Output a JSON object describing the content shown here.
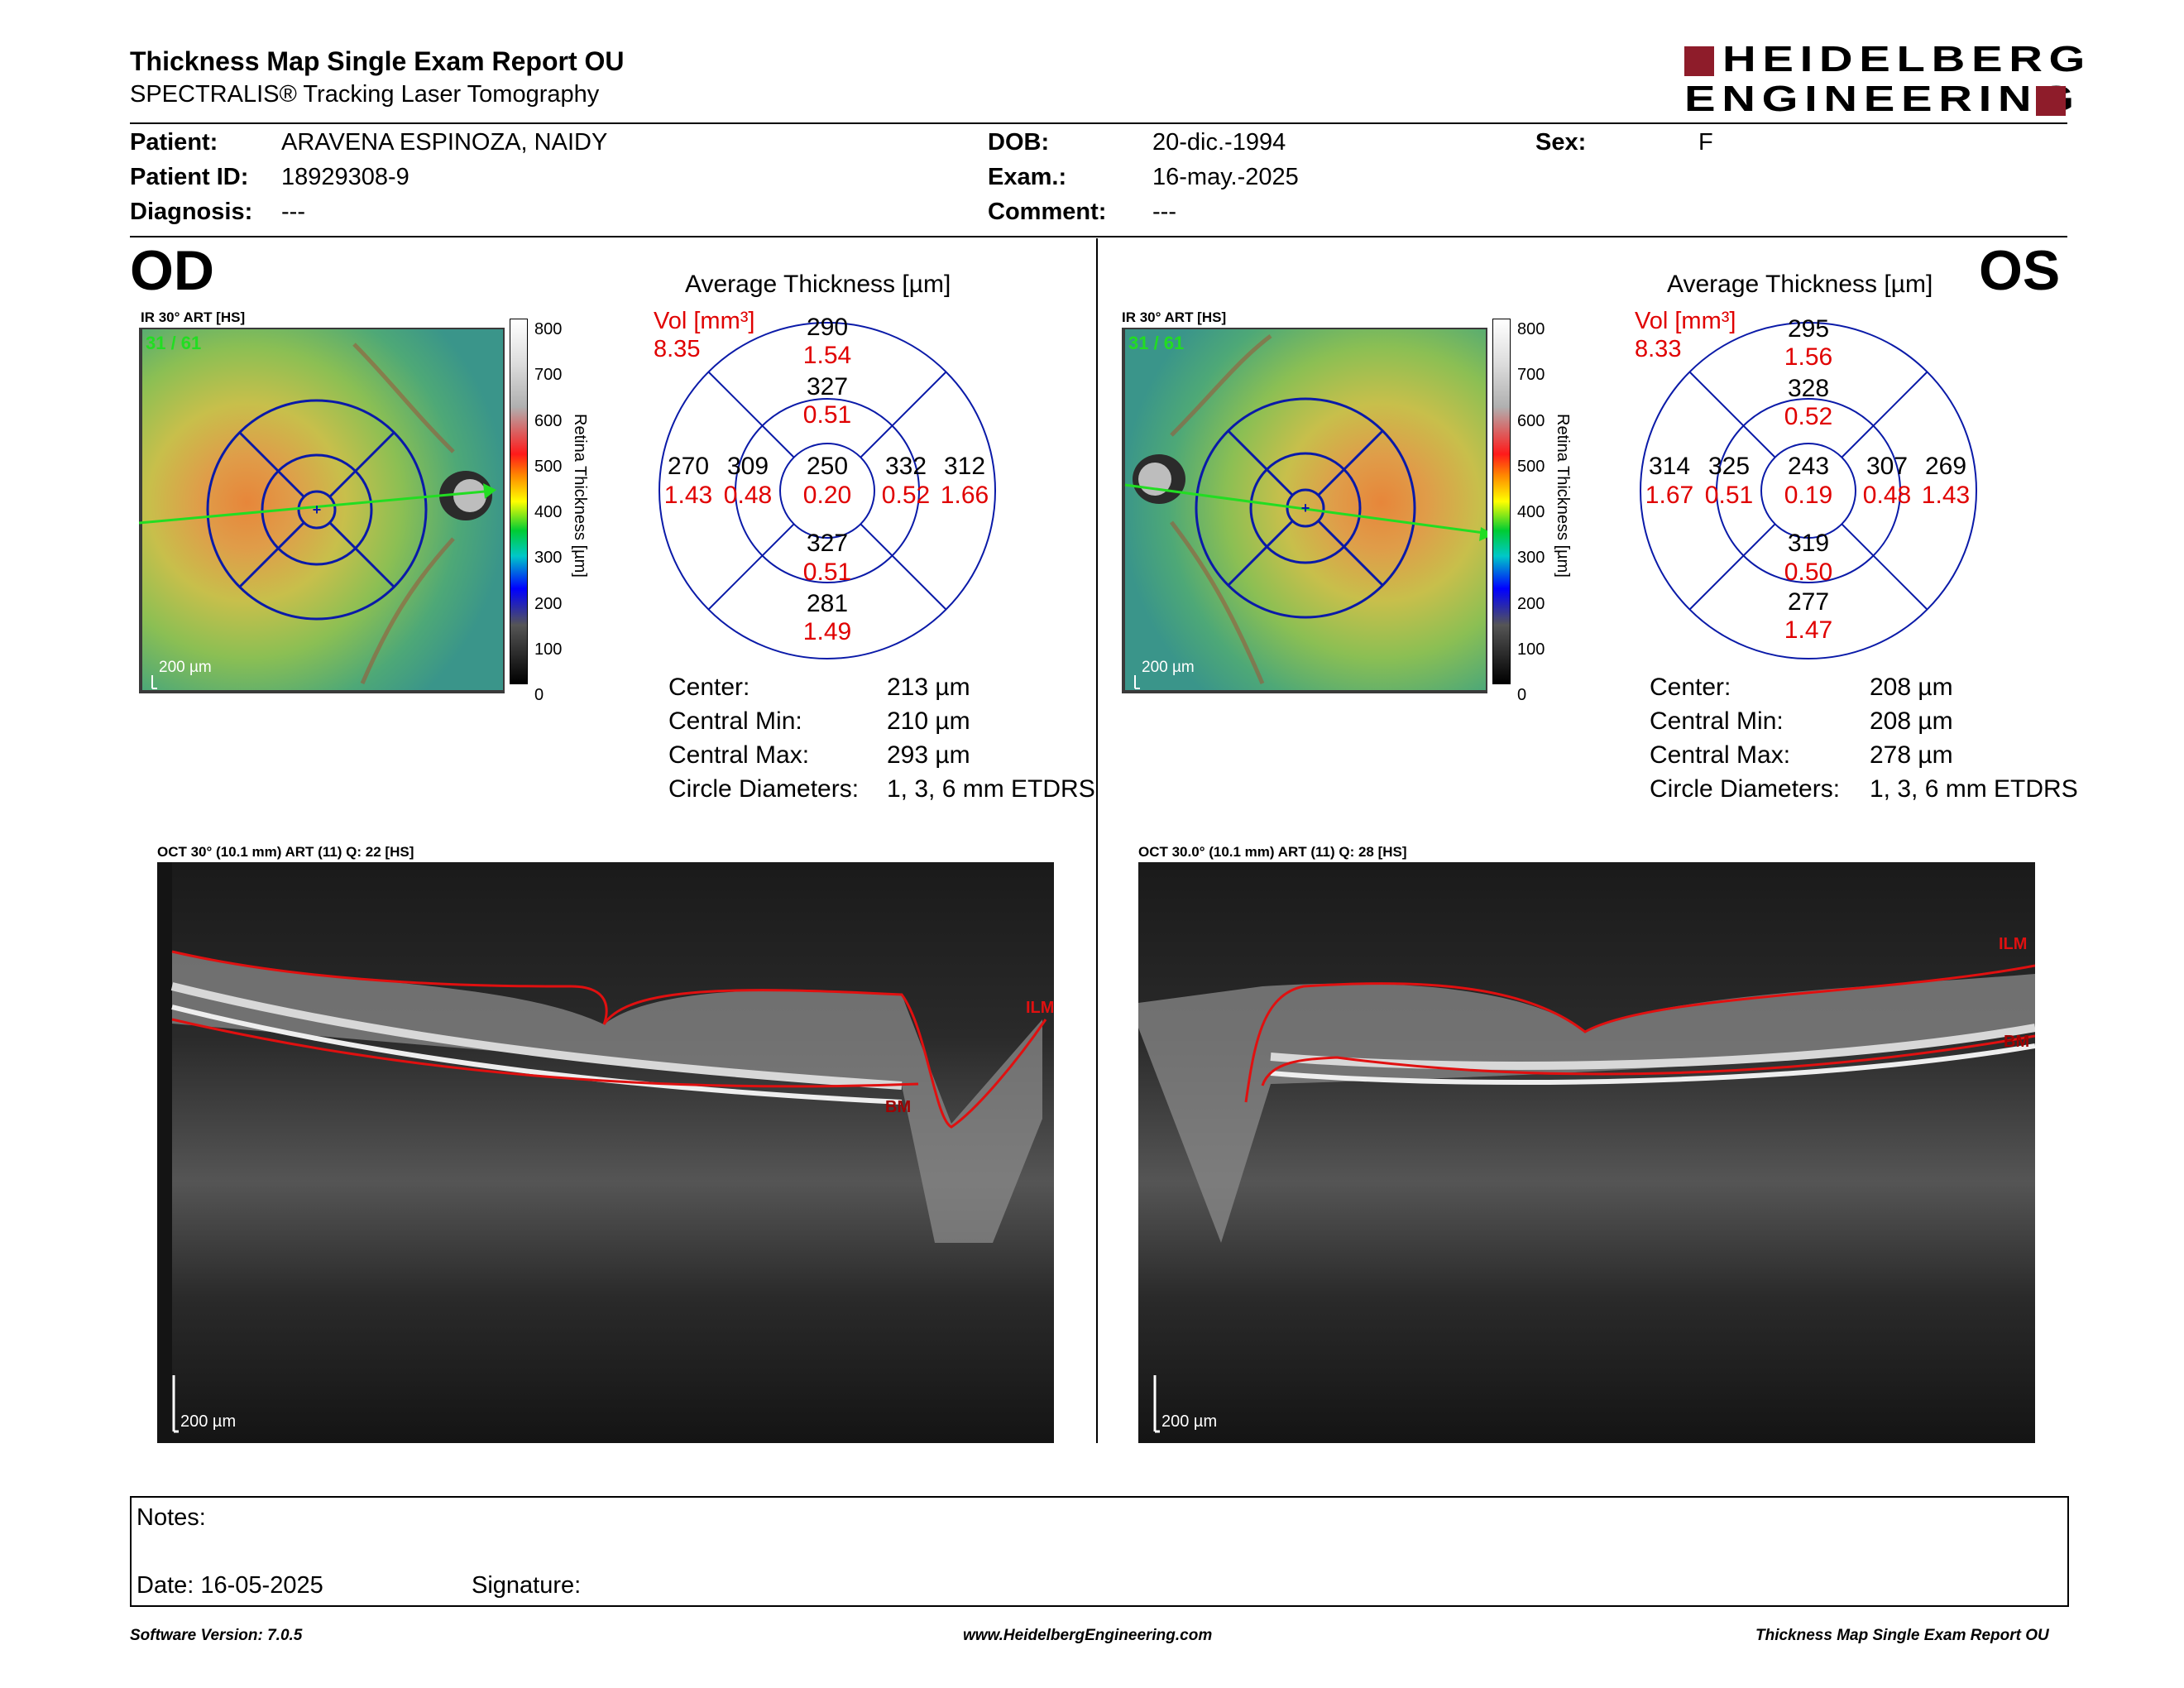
{
  "header": {
    "title": "Thickness Map Single Exam Report OU",
    "subtitle": "SPECTRALIS® Tracking Laser Tomography",
    "logo_line1": "HEIDELBERG",
    "logo_line2": "ENGINEERING"
  },
  "patient": {
    "patient_label": "Patient:",
    "patient_value": "ARAVENA ESPINOZA, NAIDY",
    "id_label": "Patient ID:",
    "id_value": "18929308-9",
    "diagnosis_label": "Diagnosis:",
    "diagnosis_value": "---",
    "dob_label": "DOB:",
    "dob_value": "20-dic.-1994",
    "exam_label": "Exam.:",
    "exam_value": "16-may.-2025",
    "comment_label": "Comment:",
    "comment_value": "---",
    "sex_label": "Sex:",
    "sex_value": "F"
  },
  "od": {
    "eye": "OD",
    "ir_label": "IR 30° ART [HS]",
    "frame": "31 / 61",
    "scale": "200 µm",
    "grid_title": "Average Thickness [µm]",
    "vol_label": "Vol [mm³]",
    "vol_total": "8.35",
    "sectors": {
      "outer_sup": {
        "t": "290",
        "v": "1.54"
      },
      "inner_sup": {
        "t": "327",
        "v": "0.51"
      },
      "outer_temp": {
        "t": "270",
        "v": "1.43"
      },
      "inner_temp": {
        "t": "309",
        "v": "0.48"
      },
      "center": {
        "t": "250",
        "v": "0.20"
      },
      "inner_nasal": {
        "t": "332",
        "v": "0.52"
      },
      "outer_nasal": {
        "t": "312",
        "v": "1.66"
      },
      "inner_inf": {
        "t": "327",
        "v": "0.51"
      },
      "outer_inf": {
        "t": "281",
        "v": "1.49"
      }
    },
    "stats": [
      {
        "label": "Center:",
        "value": "213 µm"
      },
      {
        "label": "Central Min:",
        "value": "210 µm"
      },
      {
        "label": "Central Max:",
        "value": "293 µm"
      },
      {
        "label": "Circle Diameters:",
        "value": "1, 3, 6 mm ETDRS"
      }
    ],
    "oct_label": "OCT 30° (10.1 mm) ART (11) Q: 22 [HS]",
    "oct_scale": "200 µm",
    "ilm": "ILM",
    "bm": "BM"
  },
  "os": {
    "eye": "OS",
    "ir_label": "IR 30° ART [HS]",
    "frame": "31 / 61",
    "scale": "200 µm",
    "grid_title": "Average Thickness [µm]",
    "vol_label": "Vol [mm³]",
    "vol_total": "8.33",
    "sectors": {
      "outer_sup": {
        "t": "295",
        "v": "1.56"
      },
      "inner_sup": {
        "t": "328",
        "v": "0.52"
      },
      "outer_temp": {
        "t": "269",
        "v": "1.43"
      },
      "inner_temp": {
        "t": "307",
        "v": "0.48"
      },
      "center": {
        "t": "243",
        "v": "0.19"
      },
      "inner_nasal": {
        "t": "325",
        "v": "0.51"
      },
      "outer_nasal": {
        "t": "314",
        "v": "1.67"
      },
      "inner_inf": {
        "t": "319",
        "v": "0.50"
      },
      "outer_inf": {
        "t": "277",
        "v": "1.47"
      }
    },
    "stats": [
      {
        "label": "Center:",
        "value": "208 µm"
      },
      {
        "label": "Central Min:",
        "value": "208 µm"
      },
      {
        "label": "Central Max:",
        "value": "278 µm"
      },
      {
        "label": "Circle Diameters:",
        "value": "1, 3, 6 mm ETDRS"
      }
    ],
    "oct_label": "OCT 30.0° (10.1 mm) ART (11) Q: 28 [HS]",
    "oct_scale": "200 µm",
    "ilm": "ILM",
    "bm": "BM"
  },
  "colorbar": {
    "ticks": [
      "800",
      "700",
      "600",
      "500",
      "400",
      "300",
      "200",
      "100",
      "0"
    ],
    "title": "Retina Thickness [µm]"
  },
  "notes": {
    "notes_label": "Notes:",
    "date_label": "Date: 16-05-2025",
    "signature_label": "Signature:"
  },
  "footer": {
    "software": "Software Version: 7.0.5",
    "website": "www.HeidelbergEngineering.com",
    "report": "Thickness Map Single Exam Report OU"
  },
  "colors": {
    "accent": "#8e1c2a",
    "vol_red": "#e00000",
    "grid_blue": "#0a1aa8",
    "arrow_green": "#22dd22"
  }
}
